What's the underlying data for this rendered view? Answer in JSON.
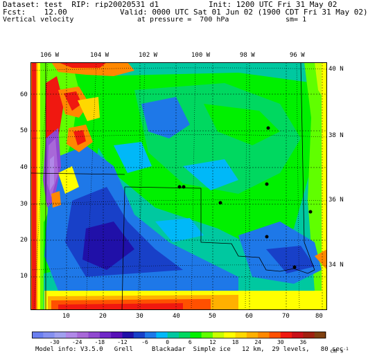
{
  "header": {
    "dataset_line": "Dataset: test  RIP: rip20020531 d1",
    "fcst_line": "Fcst:    12.00",
    "field_name": "Vertical velocity",
    "init_line": "Init: 1200 UTC Fri 31 May 02",
    "valid_line": "Valid: 0000 UTC Sat 01 Jun 02 (1900 CDT Fri 31 May 02)",
    "pressure_line": "at pressure =  700 hPa",
    "sm_line": "sm= 1"
  },
  "longitude_labels": [
    "106 W",
    "104 W",
    "102 W",
    "100 W",
    "98 W",
    "96 W"
  ],
  "latitude_labels": [
    "40 N",
    "38 N",
    "36 N",
    "34 N"
  ],
  "grid_y_labels": [
    "60",
    "50",
    "40",
    "30",
    "20",
    "10"
  ],
  "grid_x_labels": [
    "10",
    "20",
    "30",
    "40",
    "50",
    "60",
    "70",
    "80"
  ],
  "colorbar": {
    "labels": [
      "-30",
      "-24",
      "-18",
      "-12",
      "-6",
      "0",
      "6",
      "12",
      "18",
      "24",
      "30",
      "36"
    ],
    "units": "cm s",
    "units_exp": "-1",
    "colors": [
      "#6a7ff0",
      "#8590f0",
      "#a0a0ef",
      "#b088e8",
      "#a868d8",
      "#9048d0",
      "#7028c8",
      "#5810b8",
      "#2010a8",
      "#1840c8",
      "#1e78e8",
      "#00b8f8",
      "#00c8a0",
      "#00d860",
      "#00f000",
      "#60ff00",
      "#c8ff00",
      "#ffff00",
      "#ffd800",
      "#ffb000",
      "#ff8800",
      "#ff5000",
      "#f01810",
      "#c81018",
      "#a02010",
      "#804010"
    ]
  },
  "model_info": "Model info: V3.5.0   Grell     Blackadar  Simple ice   12 km,  29 levels,   80 sec",
  "map": {
    "background_color": "#00c8a0",
    "cities": 7
  }
}
